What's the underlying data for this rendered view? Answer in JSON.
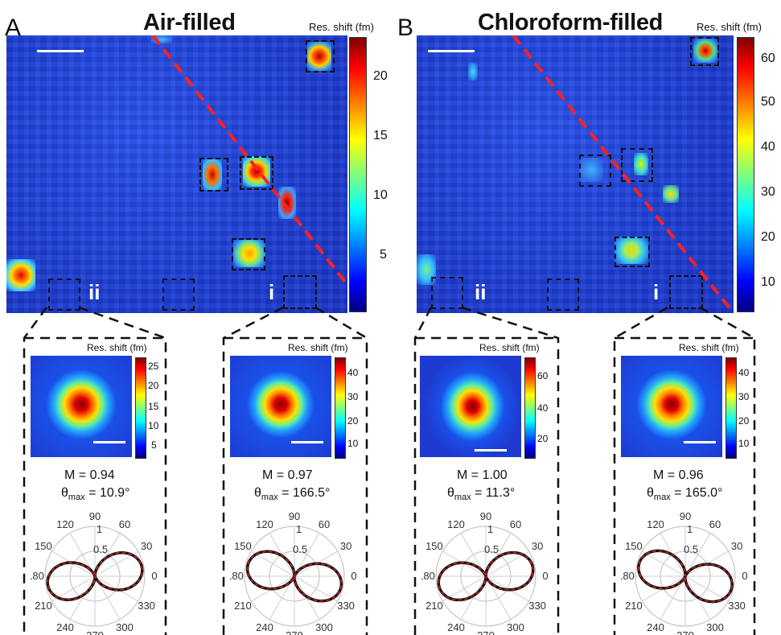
{
  "panels": [
    {
      "letter": "A",
      "title": "Air-filled",
      "colorbar": {
        "label": "Res. shift (fm)",
        "ticks": [
          "20",
          "15",
          "10",
          "5"
        ]
      },
      "roman_left": "ii",
      "roman_right": "i",
      "insets": [
        {
          "colorbar_label": "Res. shift (fm)",
          "ticks": [
            "25",
            "20",
            "15",
            "10",
            "5"
          ],
          "M": "M = 0.94",
          "theta_prefix": "θ",
          "theta_sub": "max",
          "theta_value": " = 10.9°",
          "tilt": 10.9
        },
        {
          "colorbar_label": "Res. shift (fm)",
          "ticks": [
            "40",
            "30",
            "20",
            "10"
          ],
          "M": "M = 0.97",
          "theta_prefix": "θ",
          "theta_sub": "max",
          "theta_value": " = 166.5°",
          "tilt": 166.5
        }
      ]
    },
    {
      "letter": "B",
      "title": "Chloroform-filled",
      "colorbar": {
        "label": "Res. shift (fm)",
        "ticks": [
          "60",
          "50",
          "40",
          "30",
          "20",
          "10"
        ]
      },
      "roman_left": "ii",
      "roman_right": "i",
      "insets": [
        {
          "colorbar_label": "Res. shift (fm)",
          "ticks": [
            "60",
            "40",
            "20"
          ],
          "M": "M = 1.00",
          "theta_prefix": "θ",
          "theta_sub": "max",
          "theta_value": " = 11.3°",
          "tilt": 11.3
        },
        {
          "colorbar_label": "Res. shift (fm)",
          "ticks": [
            "40",
            "30",
            "20",
            "10"
          ],
          "M": "M = 0.96",
          "theta_prefix": "θ",
          "theta_sub": "max",
          "theta_value": " = 165.0°",
          "tilt": 165.0
        }
      ]
    }
  ],
  "polar": {
    "angle_labels": [
      "90",
      "60",
      "30",
      "0",
      "330",
      "300",
      "270",
      "240",
      "210",
      "180",
      "150",
      "120"
    ],
    "radial_labels": [
      "1",
      "0.5"
    ]
  },
  "colors": {
    "data_trace": "#111111",
    "fit_trace": "#e0201b",
    "diagonal": "#ff2020",
    "background_map": "#1e3fd8"
  }
}
